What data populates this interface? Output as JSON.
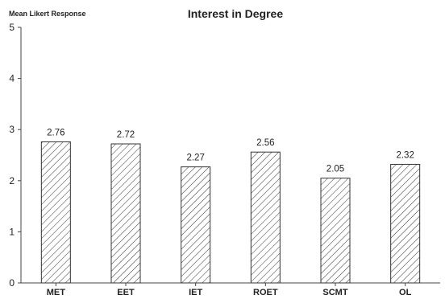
{
  "chart_data": {
    "type": "bar",
    "title": "Interest in Degree",
    "ylabel": "Mean Likert Response",
    "xlabel": "",
    "categories": [
      "MET",
      "EET",
      "IET",
      "ROET",
      "SCMT",
      "OL"
    ],
    "values": [
      2.76,
      2.72,
      2.27,
      2.56,
      2.05,
      2.32
    ],
    "value_labels": [
      "2.76",
      "2.72",
      "2.27",
      "2.56",
      "2.05",
      "2.32"
    ],
    "ylim": [
      0,
      5
    ],
    "yticks": [
      0,
      1,
      2,
      3,
      4,
      5
    ],
    "grid": false,
    "legend": "none",
    "bar_fill": "diagonal-hatch",
    "colors": {
      "bar_stroke": "#333333",
      "hatch": "#333333",
      "text": "#222222"
    }
  }
}
